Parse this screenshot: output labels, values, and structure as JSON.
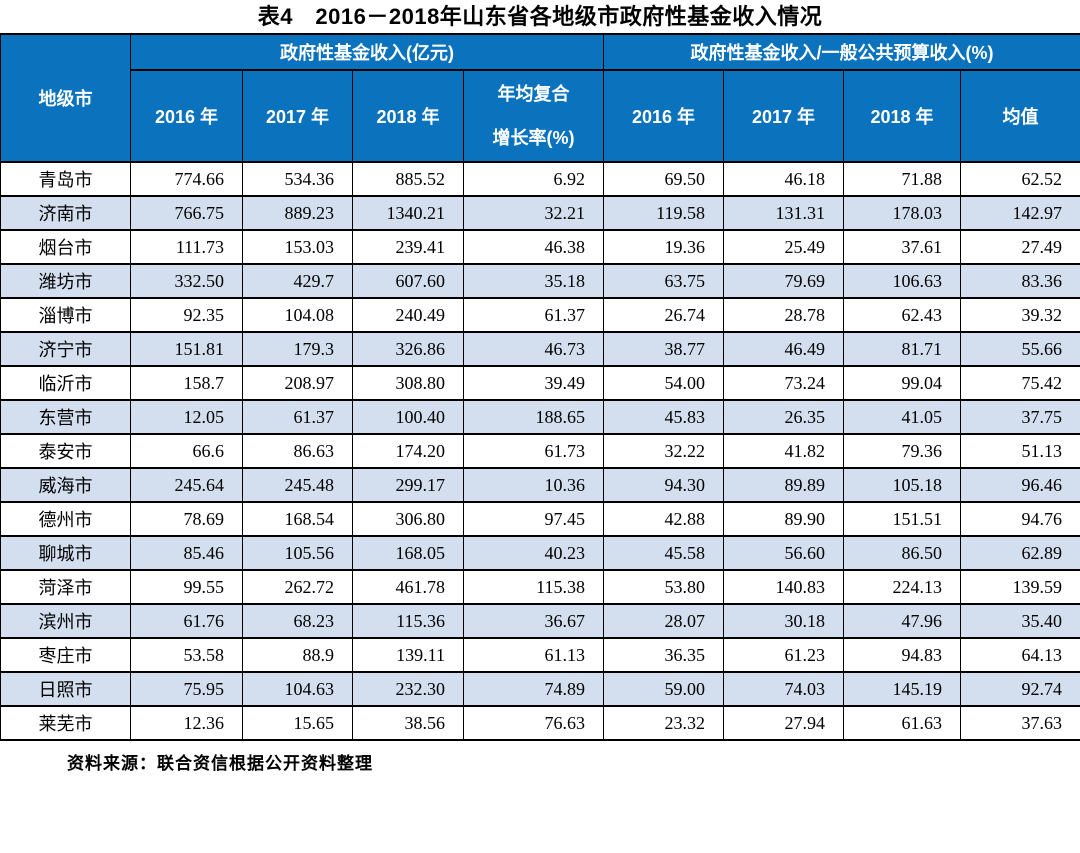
{
  "title": "表4　2016－2018年山东省各地级市政府性基金收入情况",
  "source_note": "资料来源：联合资信根据公开资料整理",
  "colors": {
    "header_bg": "#0b72be",
    "header_text": "#ffffff",
    "stripe_bg": "#d3dfee",
    "border": "#000000"
  },
  "chart_data": {
    "type": "table",
    "title": "表4　2016－2018年山东省各地级市政府性基金收入情况",
    "column_groups": [
      {
        "label": "地级市",
        "colspan": 1,
        "rowspan": 2
      },
      {
        "label": "政府性基金收入(亿元)",
        "colspan": 4
      },
      {
        "label": "政府性基金收入/一般公共预算收入(%)",
        "colspan": 4
      }
    ],
    "sub_columns": [
      "2016 年",
      "2017 年",
      "2018 年",
      "年均复合增长率(%)",
      "2016 年",
      "2017 年",
      "2018 年",
      "均值"
    ],
    "cagr_label_lines": [
      "年均复合",
      "增长率(%)"
    ],
    "rows": [
      [
        "青岛市",
        "774.66",
        "534.36",
        "885.52",
        "6.92",
        "69.50",
        "46.18",
        "71.88",
        "62.52"
      ],
      [
        "济南市",
        "766.75",
        "889.23",
        "1340.21",
        "32.21",
        "119.58",
        "131.31",
        "178.03",
        "142.97"
      ],
      [
        "烟台市",
        "111.73",
        "153.03",
        "239.41",
        "46.38",
        "19.36",
        "25.49",
        "37.61",
        "27.49"
      ],
      [
        "潍坊市",
        "332.50",
        "429.7",
        "607.60",
        "35.18",
        "63.75",
        "79.69",
        "106.63",
        "83.36"
      ],
      [
        "淄博市",
        "92.35",
        "104.08",
        "240.49",
        "61.37",
        "26.74",
        "28.78",
        "62.43",
        "39.32"
      ],
      [
        "济宁市",
        "151.81",
        "179.3",
        "326.86",
        "46.73",
        "38.77",
        "46.49",
        "81.71",
        "55.66"
      ],
      [
        "临沂市",
        "158.7",
        "208.97",
        "308.80",
        "39.49",
        "54.00",
        "73.24",
        "99.04",
        "75.42"
      ],
      [
        "东营市",
        "12.05",
        "61.37",
        "100.40",
        "188.65",
        "45.83",
        "26.35",
        "41.05",
        "37.75"
      ],
      [
        "泰安市",
        "66.6",
        "86.63",
        "174.20",
        "61.73",
        "32.22",
        "41.82",
        "79.36",
        "51.13"
      ],
      [
        "威海市",
        "245.64",
        "245.48",
        "299.17",
        "10.36",
        "94.30",
        "89.89",
        "105.18",
        "96.46"
      ],
      [
        "德州市",
        "78.69",
        "168.54",
        "306.80",
        "97.45",
        "42.88",
        "89.90",
        "151.51",
        "94.76"
      ],
      [
        "聊城市",
        "85.46",
        "105.56",
        "168.05",
        "40.23",
        "45.58",
        "56.60",
        "86.50",
        "62.89"
      ],
      [
        "菏泽市",
        "99.55",
        "262.72",
        "461.78",
        "115.38",
        "53.80",
        "140.83",
        "224.13",
        "139.59"
      ],
      [
        "滨州市",
        "61.76",
        "68.23",
        "115.36",
        "36.67",
        "28.07",
        "30.18",
        "47.96",
        "35.40"
      ],
      [
        "枣庄市",
        "53.58",
        "88.9",
        "139.11",
        "61.13",
        "36.35",
        "61.23",
        "94.83",
        "64.13"
      ],
      [
        "日照市",
        "75.95",
        "104.63",
        "232.30",
        "74.89",
        "59.00",
        "74.03",
        "145.19",
        "92.74"
      ],
      [
        "莱芜市",
        "12.36",
        "15.65",
        "38.56",
        "76.63",
        "23.32",
        "27.94",
        "61.63",
        "37.63"
      ]
    ]
  }
}
